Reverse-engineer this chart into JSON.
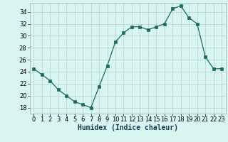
{
  "x": [
    0,
    1,
    2,
    3,
    4,
    5,
    6,
    7,
    8,
    9,
    10,
    11,
    12,
    13,
    14,
    15,
    16,
    17,
    18,
    19,
    20,
    21,
    22,
    23
  ],
  "y": [
    24.5,
    23.5,
    22.5,
    21.0,
    20.0,
    19.0,
    18.5,
    18.0,
    21.5,
    25.0,
    29.0,
    30.5,
    31.5,
    31.5,
    31.0,
    31.5,
    32.0,
    34.5,
    35.0,
    33.0,
    32.0,
    26.5,
    24.5,
    24.5
  ],
  "title": "",
  "xlabel": "Humidex (Indice chaleur)",
  "ylabel": "",
  "xlim": [
    -0.5,
    23.5
  ],
  "ylim": [
    17,
    35.5
  ],
  "yticks": [
    18,
    20,
    22,
    24,
    26,
    28,
    30,
    32,
    34
  ],
  "xticks": [
    0,
    1,
    2,
    3,
    4,
    5,
    6,
    7,
    8,
    9,
    10,
    11,
    12,
    13,
    14,
    15,
    16,
    17,
    18,
    19,
    20,
    21,
    22,
    23
  ],
  "line_color": "#1a6b5a",
  "marker_color": "#1a6b5a",
  "bg_color": "#d8f5f0",
  "grid_color": "#b8d8d4",
  "axis_fontsize": 7,
  "tick_fontsize": 6
}
